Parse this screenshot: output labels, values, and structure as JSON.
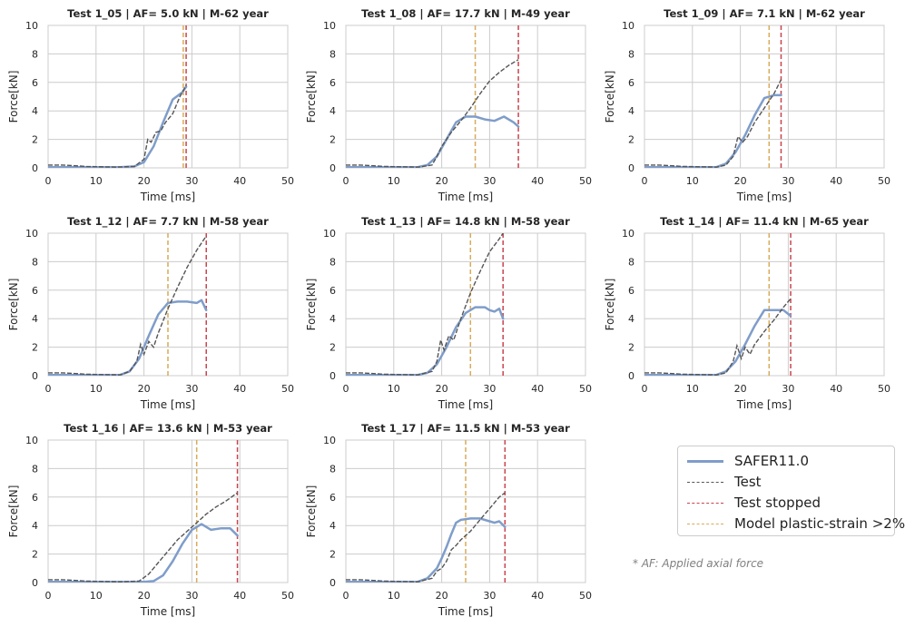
{
  "chart_data": {
    "type": "line",
    "xlim": [
      0,
      50
    ],
    "ylim": [
      0,
      10
    ],
    "xticks": [
      0,
      10,
      20,
      30,
      40,
      50
    ],
    "yticks": [
      0,
      2,
      4,
      6,
      8,
      10
    ],
    "xlabel": "Time [ms]",
    "ylabel": "Force[kN]",
    "grid": true,
    "legend": {
      "placement": "bottom-right",
      "entries": [
        {
          "name": "SAFER11.0",
          "color": "#7f9dca",
          "style": "solid"
        },
        {
          "name": "Test",
          "color": "#555555",
          "style": "dashed"
        },
        {
          "name": "Test stopped",
          "color": "#c9444c",
          "style": "dashed"
        },
        {
          "name": "Model plastic-strain >2%",
          "color": "#d6ac5a",
          "style": "dashed"
        }
      ]
    },
    "note": "* AF: Applied axial force",
    "panels": [
      {
        "title": "Test 1_05 | AF= 5.0 kN | M-62 year",
        "test_stopped_ms": 28.8,
        "model_strain_ms": 28.2,
        "series": [
          {
            "name": "SAFER11.0",
            "x": [
              0,
              5,
              10,
              15,
              18,
              20,
              22,
              24,
              26,
              28,
              28.8
            ],
            "y": [
              0.05,
              0.05,
              0.05,
              0.05,
              0.1,
              0.4,
              1.5,
              3.2,
              4.8,
              5.3,
              5.7
            ]
          },
          {
            "name": "Test",
            "x": [
              0,
              3,
              8,
              14,
              18,
              20,
              20.8,
              21.5,
              22.5,
              23.5,
              24.5,
              26,
              27.5,
              28.8
            ],
            "y": [
              0.2,
              0.2,
              0.1,
              0.05,
              0.1,
              0.6,
              2.0,
              1.8,
              2.5,
              2.6,
              3.2,
              3.8,
              5.0,
              5.8
            ]
          }
        ]
      },
      {
        "title": "Test 1_08 | AF= 17.7 kN | M-49 year",
        "test_stopped_ms": 36.0,
        "model_strain_ms": 27.0,
        "series": [
          {
            "name": "SAFER11.0",
            "x": [
              0,
              5,
              10,
              15,
              17,
              19,
              21,
              23,
              25,
              27,
              29,
              31,
              33,
              35,
              36
            ],
            "y": [
              0.05,
              0.05,
              0.05,
              0.05,
              0.2,
              0.8,
              2.0,
              3.2,
              3.6,
              3.6,
              3.4,
              3.3,
              3.6,
              3.2,
              2.9
            ]
          },
          {
            "name": "Test",
            "x": [
              0,
              3,
              8,
              15,
              18,
              19,
              20,
              21,
              22,
              24,
              26,
              28,
              30,
              32,
              34,
              36
            ],
            "y": [
              0.2,
              0.2,
              0.1,
              0.05,
              0.2,
              0.8,
              1.5,
              2.0,
              2.5,
              3.3,
              4.2,
              5.2,
              6.1,
              6.7,
              7.2,
              7.6
            ]
          }
        ]
      },
      {
        "title": "Test 1_09 | AF= 7.1 kN | M-62 year",
        "test_stopped_ms": 28.5,
        "model_strain_ms": 26.0,
        "series": [
          {
            "name": "SAFER11.0",
            "x": [
              0,
              5,
              10,
              15,
              17,
              19,
              21,
              23,
              25,
              27,
              28.5
            ],
            "y": [
              0.05,
              0.05,
              0.05,
              0.05,
              0.3,
              1.1,
              2.3,
              3.7,
              4.9,
              5.1,
              5.1
            ]
          },
          {
            "name": "Test",
            "x": [
              0,
              3,
              8,
              15,
              17,
              18.5,
              19.5,
              20.5,
              21.5,
              23,
              25,
              27,
              28.5
            ],
            "y": [
              0.2,
              0.2,
              0.1,
              0.05,
              0.2,
              0.8,
              2.2,
              1.8,
              2.2,
              3.2,
              4.2,
              5.2,
              6.2
            ]
          }
        ]
      },
      {
        "title": "Test 1_12 | AF= 7.7 kN | M-58 year",
        "test_stopped_ms": 33.0,
        "model_strain_ms": 25.0,
        "series": [
          {
            "name": "SAFER11.0",
            "x": [
              0,
              5,
              10,
              15,
              17,
              19,
              21,
              23,
              25,
              27,
              29,
              31,
              32,
              33
            ],
            "y": [
              0.05,
              0.05,
              0.05,
              0.05,
              0.3,
              1.2,
              2.8,
              4.3,
              5.1,
              5.2,
              5.2,
              5.1,
              5.3,
              4.6
            ]
          },
          {
            "name": "Test",
            "x": [
              0,
              3,
              8,
              15,
              17,
              18.5,
              19.3,
              20,
              21,
              22,
              23,
              25,
              27,
              29,
              31,
              33
            ],
            "y": [
              0.2,
              0.2,
              0.1,
              0.05,
              0.3,
              1.0,
              2.2,
              1.5,
              2.4,
              2.0,
              3.0,
              4.7,
              6.2,
              7.6,
              8.8,
              9.8
            ]
          }
        ]
      },
      {
        "title": "Test 1_13 | AF= 14.8 kN | M-58 year",
        "test_stopped_ms": 32.8,
        "model_strain_ms": 26.0,
        "series": [
          {
            "name": "SAFER11.0",
            "x": [
              0,
              5,
              10,
              15,
              17,
              19,
              21,
              23,
              25,
              27,
              29,
              30,
              31,
              32,
              32.8
            ],
            "y": [
              0.05,
              0.05,
              0.05,
              0.05,
              0.2,
              0.8,
              2.0,
              3.4,
              4.4,
              4.8,
              4.8,
              4.6,
              4.5,
              4.7,
              4.0
            ]
          },
          {
            "name": "Test",
            "x": [
              0,
              3,
              8,
              15,
              18,
              19,
              19.8,
              20.5,
              21.5,
              22.5,
              24,
              26,
              28,
              30,
              32,
              32.8
            ],
            "y": [
              0.2,
              0.2,
              0.1,
              0.05,
              0.3,
              1.0,
              2.5,
              1.8,
              2.8,
              2.5,
              4.0,
              5.8,
              7.3,
              8.7,
              9.6,
              10.0
            ]
          }
        ]
      },
      {
        "title": "Test 1_14 | AF= 11.4 kN | M-65 year",
        "test_stopped_ms": 30.5,
        "model_strain_ms": 26.0,
        "series": [
          {
            "name": "SAFER11.0",
            "x": [
              0,
              5,
              10,
              15,
              17,
              19,
              21,
              23,
              25,
              27,
              29,
              30.5
            ],
            "y": [
              0.05,
              0.05,
              0.05,
              0.05,
              0.3,
              1.0,
              2.2,
              3.5,
              4.6,
              4.6,
              4.6,
              4.2
            ]
          },
          {
            "name": "Test",
            "x": [
              0,
              3,
              8,
              15,
              17,
              18.5,
              19.3,
              20.2,
              21,
              22,
              23,
              25,
              27,
              29,
              30.5
            ],
            "y": [
              0.2,
              0.2,
              0.1,
              0.05,
              0.2,
              1.0,
              2.1,
              1.2,
              2.0,
              1.5,
              2.2,
              3.1,
              3.9,
              4.8,
              5.4
            ]
          }
        ]
      },
      {
        "title": "Test 1_16 | AF= 13.6 kN | M-53 year",
        "test_stopped_ms": 39.5,
        "model_strain_ms": 31.0,
        "series": [
          {
            "name": "SAFER11.0",
            "x": [
              0,
              5,
              10,
              15,
              20,
              22,
              24,
              26,
              28,
              30,
              32,
              34,
              36,
              38,
              39.5
            ],
            "y": [
              0.05,
              0.05,
              0.05,
              0.05,
              0.05,
              0.1,
              0.5,
              1.5,
              2.7,
              3.7,
              4.1,
              3.7,
              3.8,
              3.8,
              3.3
            ]
          },
          {
            "name": "Test",
            "x": [
              0,
              3,
              8,
              15,
              19,
              21,
              23,
              25,
              27,
              29,
              31,
              33,
              35,
              37,
              39.5
            ],
            "y": [
              0.2,
              0.2,
              0.1,
              0.05,
              0.1,
              0.6,
              1.4,
              2.2,
              3.0,
              3.6,
              4.2,
              4.8,
              5.3,
              5.7,
              6.3
            ]
          }
        ]
      },
      {
        "title": "Test 1_17 | AF= 11.5 kN | M-53 year",
        "test_stopped_ms": 33.2,
        "model_strain_ms": 25.0,
        "series": [
          {
            "name": "SAFER11.0",
            "x": [
              0,
              5,
              10,
              15,
              17,
              19,
              20,
              21,
              22,
              23,
              24,
              26,
              28,
              30,
              31,
              32,
              33.2
            ],
            "y": [
              0.05,
              0.05,
              0.05,
              0.05,
              0.3,
              1.0,
              1.7,
              2.5,
              3.4,
              4.2,
              4.4,
              4.5,
              4.5,
              4.3,
              4.2,
              4.3,
              3.9
            ]
          },
          {
            "name": "Test",
            "x": [
              0,
              3,
              8,
              15,
              18,
              19,
              20,
              21,
              22,
              23,
              24,
              26,
              28,
              30,
              32,
              33.2
            ],
            "y": [
              0.2,
              0.2,
              0.1,
              0.05,
              0.3,
              0.8,
              1.0,
              1.5,
              2.3,
              2.6,
              3.0,
              3.6,
              4.4,
              5.2,
              6.0,
              6.3
            ]
          }
        ]
      }
    ]
  }
}
